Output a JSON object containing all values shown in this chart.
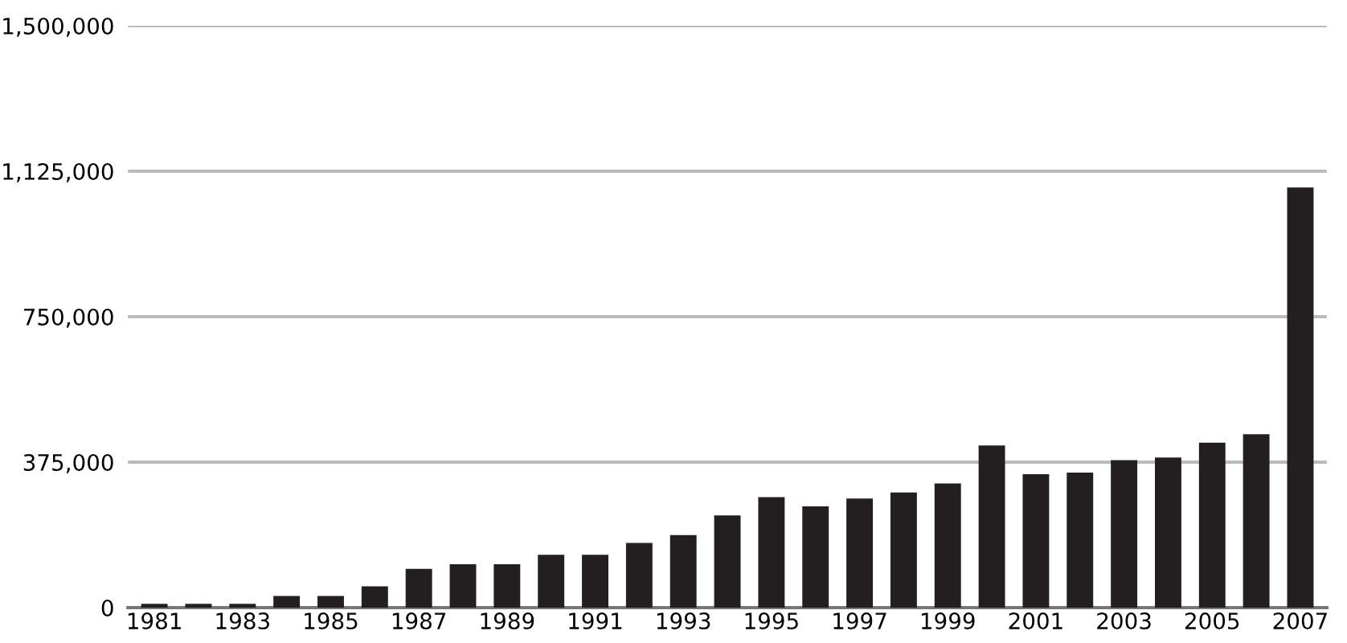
{
  "chart_data": {
    "type": "bar",
    "categories": [
      "1981",
      null,
      "1983",
      null,
      "1985",
      null,
      "1987",
      null,
      "1989",
      null,
      "1991",
      null,
      "1993",
      null,
      "1995",
      null,
      "1997",
      null,
      "1999",
      null,
      "2001",
      null,
      "2003",
      null,
      "2005",
      null,
      "2007"
    ],
    "values": [
      10000,
      10000,
      10000,
      30000,
      30000,
      55000,
      100000,
      112000,
      112000,
      136000,
      136000,
      167000,
      187000,
      238000,
      285000,
      261000,
      281000,
      297000,
      320000,
      418000,
      344000,
      348000,
      380000,
      387000,
      425000,
      447000,
      1083000
    ],
    "color": "#231f20",
    "ylim": [
      0,
      1500000
    ],
    "yticks": [
      {
        "value": 0,
        "label": "0"
      },
      {
        "value": 375000,
        "label": "375,000"
      },
      {
        "value": 750000,
        "label": "750,000"
      },
      {
        "value": 1125000,
        "label": "1,125,000"
      },
      {
        "value": 1500000,
        "label": "1,500,000"
      }
    ],
    "grid": "y"
  }
}
